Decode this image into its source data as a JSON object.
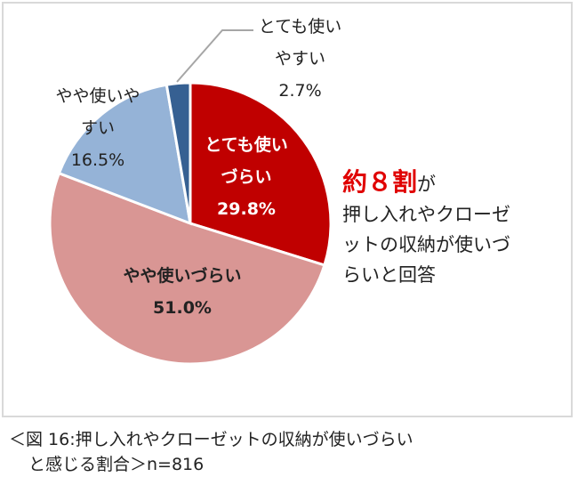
{
  "chart_data": {
    "type": "pie",
    "slices": [
      {
        "label": "とても使いづらい",
        "value": 29.8,
        "color": "#c00000",
        "label_lines": [
          "とても使い",
          "づらい",
          "29.8%"
        ]
      },
      {
        "label": "やや使いづらい",
        "value": 51.0,
        "color": "#d99694",
        "label_lines": [
          "やや使いづらい",
          "51.0%"
        ]
      },
      {
        "label": "やや使いやすい",
        "value": 16.5,
        "color": "#95b3d7",
        "label_lines": [
          "やや使いや",
          "すい",
          "16.5%"
        ]
      },
      {
        "label": "とても使いやすい",
        "value": 2.7,
        "color": "#366092",
        "label_lines": [
          "とても使い",
          "やすい",
          "2.7%"
        ]
      }
    ],
    "start": "top",
    "direction": "clockwise"
  },
  "annotation": {
    "highlight": "約８割",
    "highlight_suffix": "が",
    "lines": [
      "押し入れやクローゼ",
      "ットの収納が使いづ",
      "らいと回答"
    ]
  },
  "caption": {
    "line1": "＜図 16:押し入れやクローゼットの収納が使いづらい",
    "line2": "と感じる割合＞n=816"
  }
}
